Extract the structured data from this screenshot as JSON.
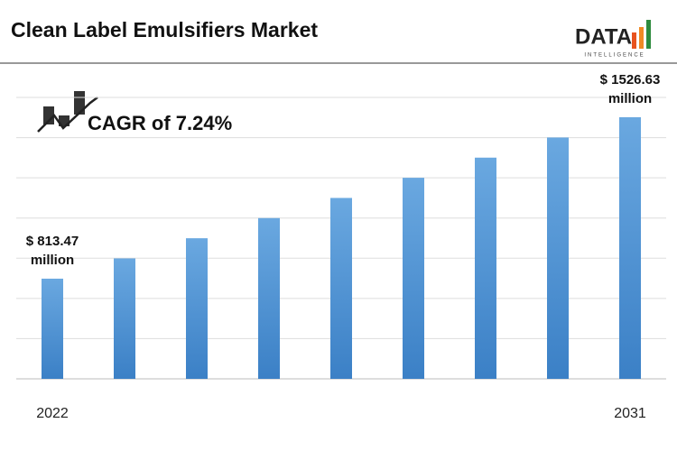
{
  "logo": {
    "text": "DATA",
    "subtitle": "INTELLIGENCE"
  },
  "chart_data": {
    "type": "bar",
    "title": "Clean Label Emulsifiers Market",
    "annotation": "CAGR of 7.24%",
    "categories": [
      "2022",
      null,
      null,
      null,
      null,
      null,
      null,
      null,
      "2031"
    ],
    "values": [
      813.47,
      903,
      992,
      1081,
      1170,
      1259,
      1348,
      1437,
      1526.63
    ],
    "value_labels": [
      "$ 813.47 million",
      null,
      null,
      null,
      null,
      null,
      null,
      null,
      "$ 1526.63 million"
    ],
    "color": "#4a8fd2",
    "ylim": [
      371,
      1614
    ]
  }
}
